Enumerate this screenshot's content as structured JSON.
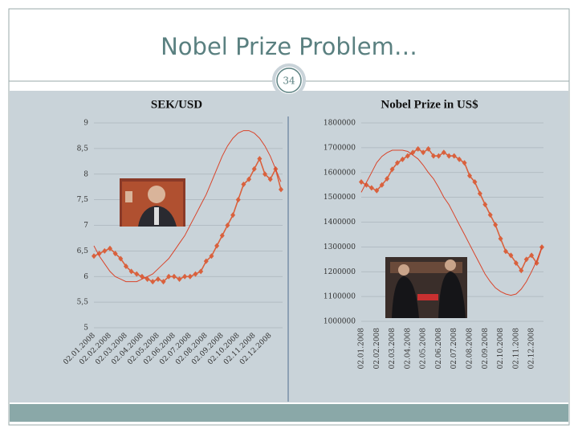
{
  "slide": {
    "title": "Nobel Prize Problem…",
    "page": "34"
  },
  "chart_data": [
    {
      "type": "line",
      "title": "SEK/USD",
      "categories": [
        "02.01.2008",
        null,
        null,
        "02.02.2008",
        null,
        null,
        "02.03.2008",
        null,
        null,
        "02.04.2008",
        null,
        null,
        "02.05.2008",
        null,
        null,
        "02.06.2008",
        null,
        null,
        "02.07.2008",
        null,
        null,
        "02.08.2008",
        null,
        null,
        "02.09.2008",
        null,
        null,
        "02.10.2008",
        null,
        null,
        "02.11.2008",
        null,
        null,
        "02.12.2008",
        null,
        null
      ],
      "series": [
        {
          "color": "#d9613d",
          "marker": true,
          "values": [
            6.4,
            6.45,
            6.5,
            6.55,
            6.45,
            6.35,
            6.2,
            6.1,
            6.05,
            6.0,
            5.95,
            5.9,
            5.95,
            5.9,
            6.0,
            6.0,
            5.95,
            6.0,
            6.0,
            6.05,
            6.1,
            6.3,
            6.4,
            6.6,
            6.8,
            7.0,
            7.2,
            7.5,
            7.8,
            7.9,
            8.1,
            8.3,
            8.0,
            7.9,
            8.1,
            7.7
          ]
        },
        {
          "color": "#d9442a",
          "marker": false,
          "values": [
            6.6,
            6.4,
            6.25,
            6.1,
            6.0,
            5.95,
            5.9,
            5.9,
            5.9,
            5.95,
            6.0,
            6.05,
            6.15,
            6.25,
            6.35,
            6.5,
            6.65,
            6.8,
            7.0,
            7.2,
            7.4,
            7.6,
            7.85,
            8.1,
            8.35,
            8.55,
            8.7,
            8.8,
            8.85,
            8.85,
            8.8,
            8.7,
            8.55,
            8.35,
            8.1,
            7.85
          ]
        }
      ],
      "ylim": [
        5,
        9
      ],
      "yticks": [
        5,
        {
          "value": 5.5,
          "label": "5,5"
        },
        6,
        {
          "value": 6.5,
          "label": "6,5"
        },
        7,
        {
          "value": 7.5,
          "label": "7,5"
        },
        8,
        {
          "value": 8.5,
          "label": "8,5"
        },
        9
      ],
      "grid": true
    },
    {
      "type": "line",
      "title": "Nobel Prize in US$",
      "categories": [
        "02.01.2008",
        null,
        null,
        "02.02.2008",
        null,
        null,
        "02.03.2008",
        null,
        null,
        "02.04.2008",
        null,
        null,
        "02.05.2008",
        null,
        null,
        "02.06.2008",
        null,
        null,
        "02.07.2008",
        null,
        null,
        "02.08.2008",
        null,
        null,
        "02.09.2008",
        null,
        null,
        "02.10.2008",
        null,
        null,
        "02.11.2008",
        null,
        null,
        "02.12.2008",
        null,
        null
      ],
      "series": [
        {
          "color": "#d9613d",
          "marker": true,
          "values": [
            1562000,
            1550000,
            1538000,
            1527000,
            1550000,
            1575000,
            1613000,
            1639000,
            1653000,
            1667000,
            1681000,
            1695000,
            1681000,
            1695000,
            1667000,
            1667000,
            1681000,
            1667000,
            1667000,
            1653000,
            1639000,
            1587000,
            1562000,
            1515000,
            1471000,
            1429000,
            1389000,
            1333000,
            1282000,
            1266000,
            1235000,
            1205000,
            1250000,
            1266000,
            1235000,
            1299000
          ]
        },
        {
          "color": "#d9442a",
          "marker": false,
          "values": [
            1520000,
            1560000,
            1600000,
            1640000,
            1665000,
            1680000,
            1690000,
            1690000,
            1690000,
            1685000,
            1670000,
            1655000,
            1630000,
            1600000,
            1575000,
            1540000,
            1500000,
            1470000,
            1430000,
            1390000,
            1350000,
            1310000,
            1270000,
            1230000,
            1190000,
            1160000,
            1135000,
            1120000,
            1110000,
            1105000,
            1110000,
            1130000,
            1160000,
            1200000,
            1245000,
            1300000
          ]
        }
      ],
      "ylim": [
        1000000,
        1800000
      ],
      "yticks": [
        1000000,
        1100000,
        1200000,
        1300000,
        1400000,
        1500000,
        1600000,
        1700000,
        1800000
      ],
      "grid": true
    }
  ]
}
